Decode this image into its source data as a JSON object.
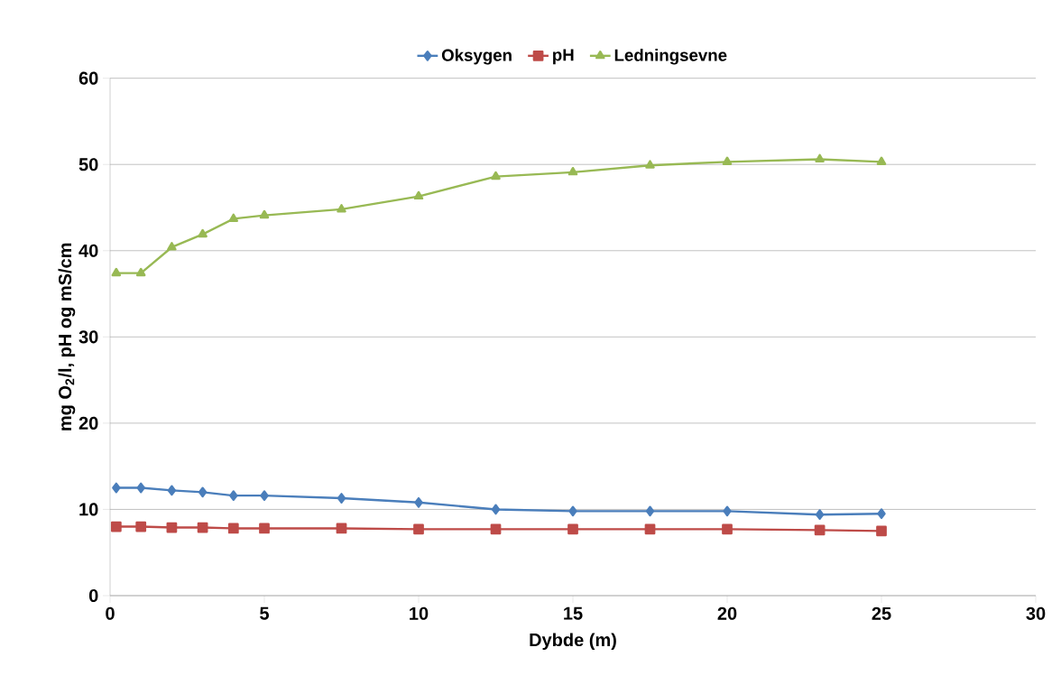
{
  "chart_data": {
    "type": "line",
    "xlabel": "Dybde (m)",
    "ylabel": "mg O$_{2}$/l, pH og mS/cm",
    "x": [
      0.2,
      1,
      2,
      3,
      4,
      5,
      7.5,
      10,
      12.5,
      15,
      17.5,
      20,
      23,
      25
    ],
    "series": [
      {
        "name": "Oksygen",
        "color": "#4a7ebb",
        "marker": "diamond",
        "values": [
          12.5,
          12.5,
          12.2,
          12.0,
          11.6,
          11.6,
          11.3,
          10.8,
          10.0,
          9.8,
          9.8,
          9.8,
          9.4,
          9.5
        ]
      },
      {
        "name": "pH",
        "color": "#be4b48",
        "marker": "square",
        "values": [
          8.0,
          8.0,
          7.9,
          7.9,
          7.8,
          7.8,
          7.8,
          7.7,
          7.7,
          7.7,
          7.7,
          7.7,
          7.6,
          7.5
        ]
      },
      {
        "name": "Ledningsevne",
        "color": "#98b954",
        "marker": "triangle",
        "values": [
          37.4,
          37.4,
          40.4,
          41.9,
          43.7,
          44.1,
          44.8,
          46.3,
          48.6,
          49.1,
          49.9,
          50.3,
          50.6,
          50.3
        ]
      }
    ],
    "xlim": [
      0,
      30
    ],
    "xticks": [
      0,
      5,
      10,
      15,
      20,
      25,
      30
    ],
    "ylim": [
      0,
      60
    ],
    "yticks": [
      0,
      10,
      20,
      30,
      40,
      50,
      60
    ],
    "grid": "y",
    "legend": "top",
    "line_style": "solid"
  }
}
